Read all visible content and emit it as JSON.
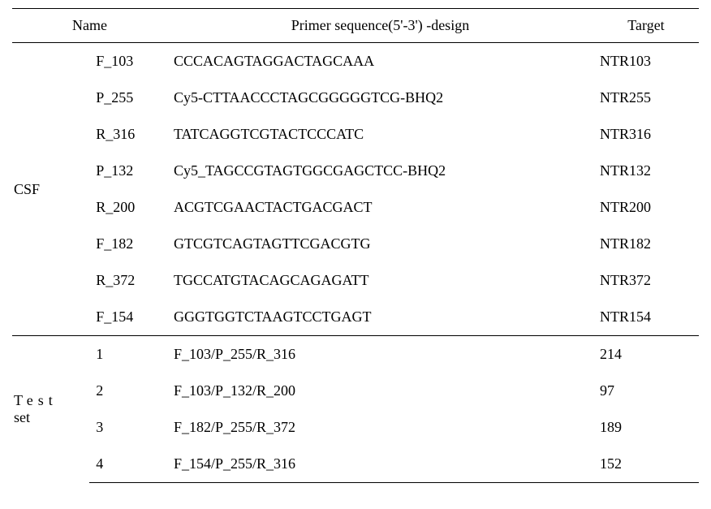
{
  "header": {
    "name": "Name",
    "sequence": "Primer sequence(5'-3') -design",
    "target": "Target"
  },
  "groups": [
    {
      "label": "CSF",
      "label_spaced": false,
      "label_second_line": null,
      "rows": [
        {
          "id": "F_103",
          "seq": "CCCACAGTAGGACTAGCAAA",
          "target": "NTR103"
        },
        {
          "id": "P_255",
          "seq": "Cy5-CTTAACCCTAGCGGGGGTCG-BHQ2",
          "target": "NTR255"
        },
        {
          "id": "R_316",
          "seq": "TATCAGGTCGTACTCCCATC",
          "target": "NTR316"
        },
        {
          "id": "P_132",
          "seq": "Cy5_TAGCCGTAGTGGCGAGCTCC-BHQ2",
          "target": "NTR132"
        },
        {
          "id": "R_200",
          "seq": "ACGTCGAACTACTGACGACT",
          "target": "NTR200"
        },
        {
          "id": "F_182",
          "seq": "GTCGTCAGTAGTTCGACGTG",
          "target": "NTR182"
        },
        {
          "id": "R_372",
          "seq": "TGCCATGTACAGCAGAGATT",
          "target": "NTR372"
        },
        {
          "id": "F_154",
          "seq": "GGGTGGTCTAAGTCCTGAGT",
          "target": "NTR154"
        }
      ]
    },
    {
      "label": "Test",
      "label_spaced": true,
      "label_second_line": "set",
      "rows": [
        {
          "id": "1",
          "seq": "F_103/P_255/R_316",
          "target": "214"
        },
        {
          "id": "2",
          "seq": "F_103/P_132/R_200",
          "target": "97"
        },
        {
          "id": "3",
          "seq": "F_182/P_255/R_372",
          "target": "189"
        },
        {
          "id": "4",
          "seq": "F_154/P_255/R_316",
          "target": "152"
        }
      ]
    }
  ],
  "style": {
    "font_size_pt": 18,
    "border_color": "#000000",
    "background_color": "#ffffff",
    "text_color": "#000000"
  }
}
